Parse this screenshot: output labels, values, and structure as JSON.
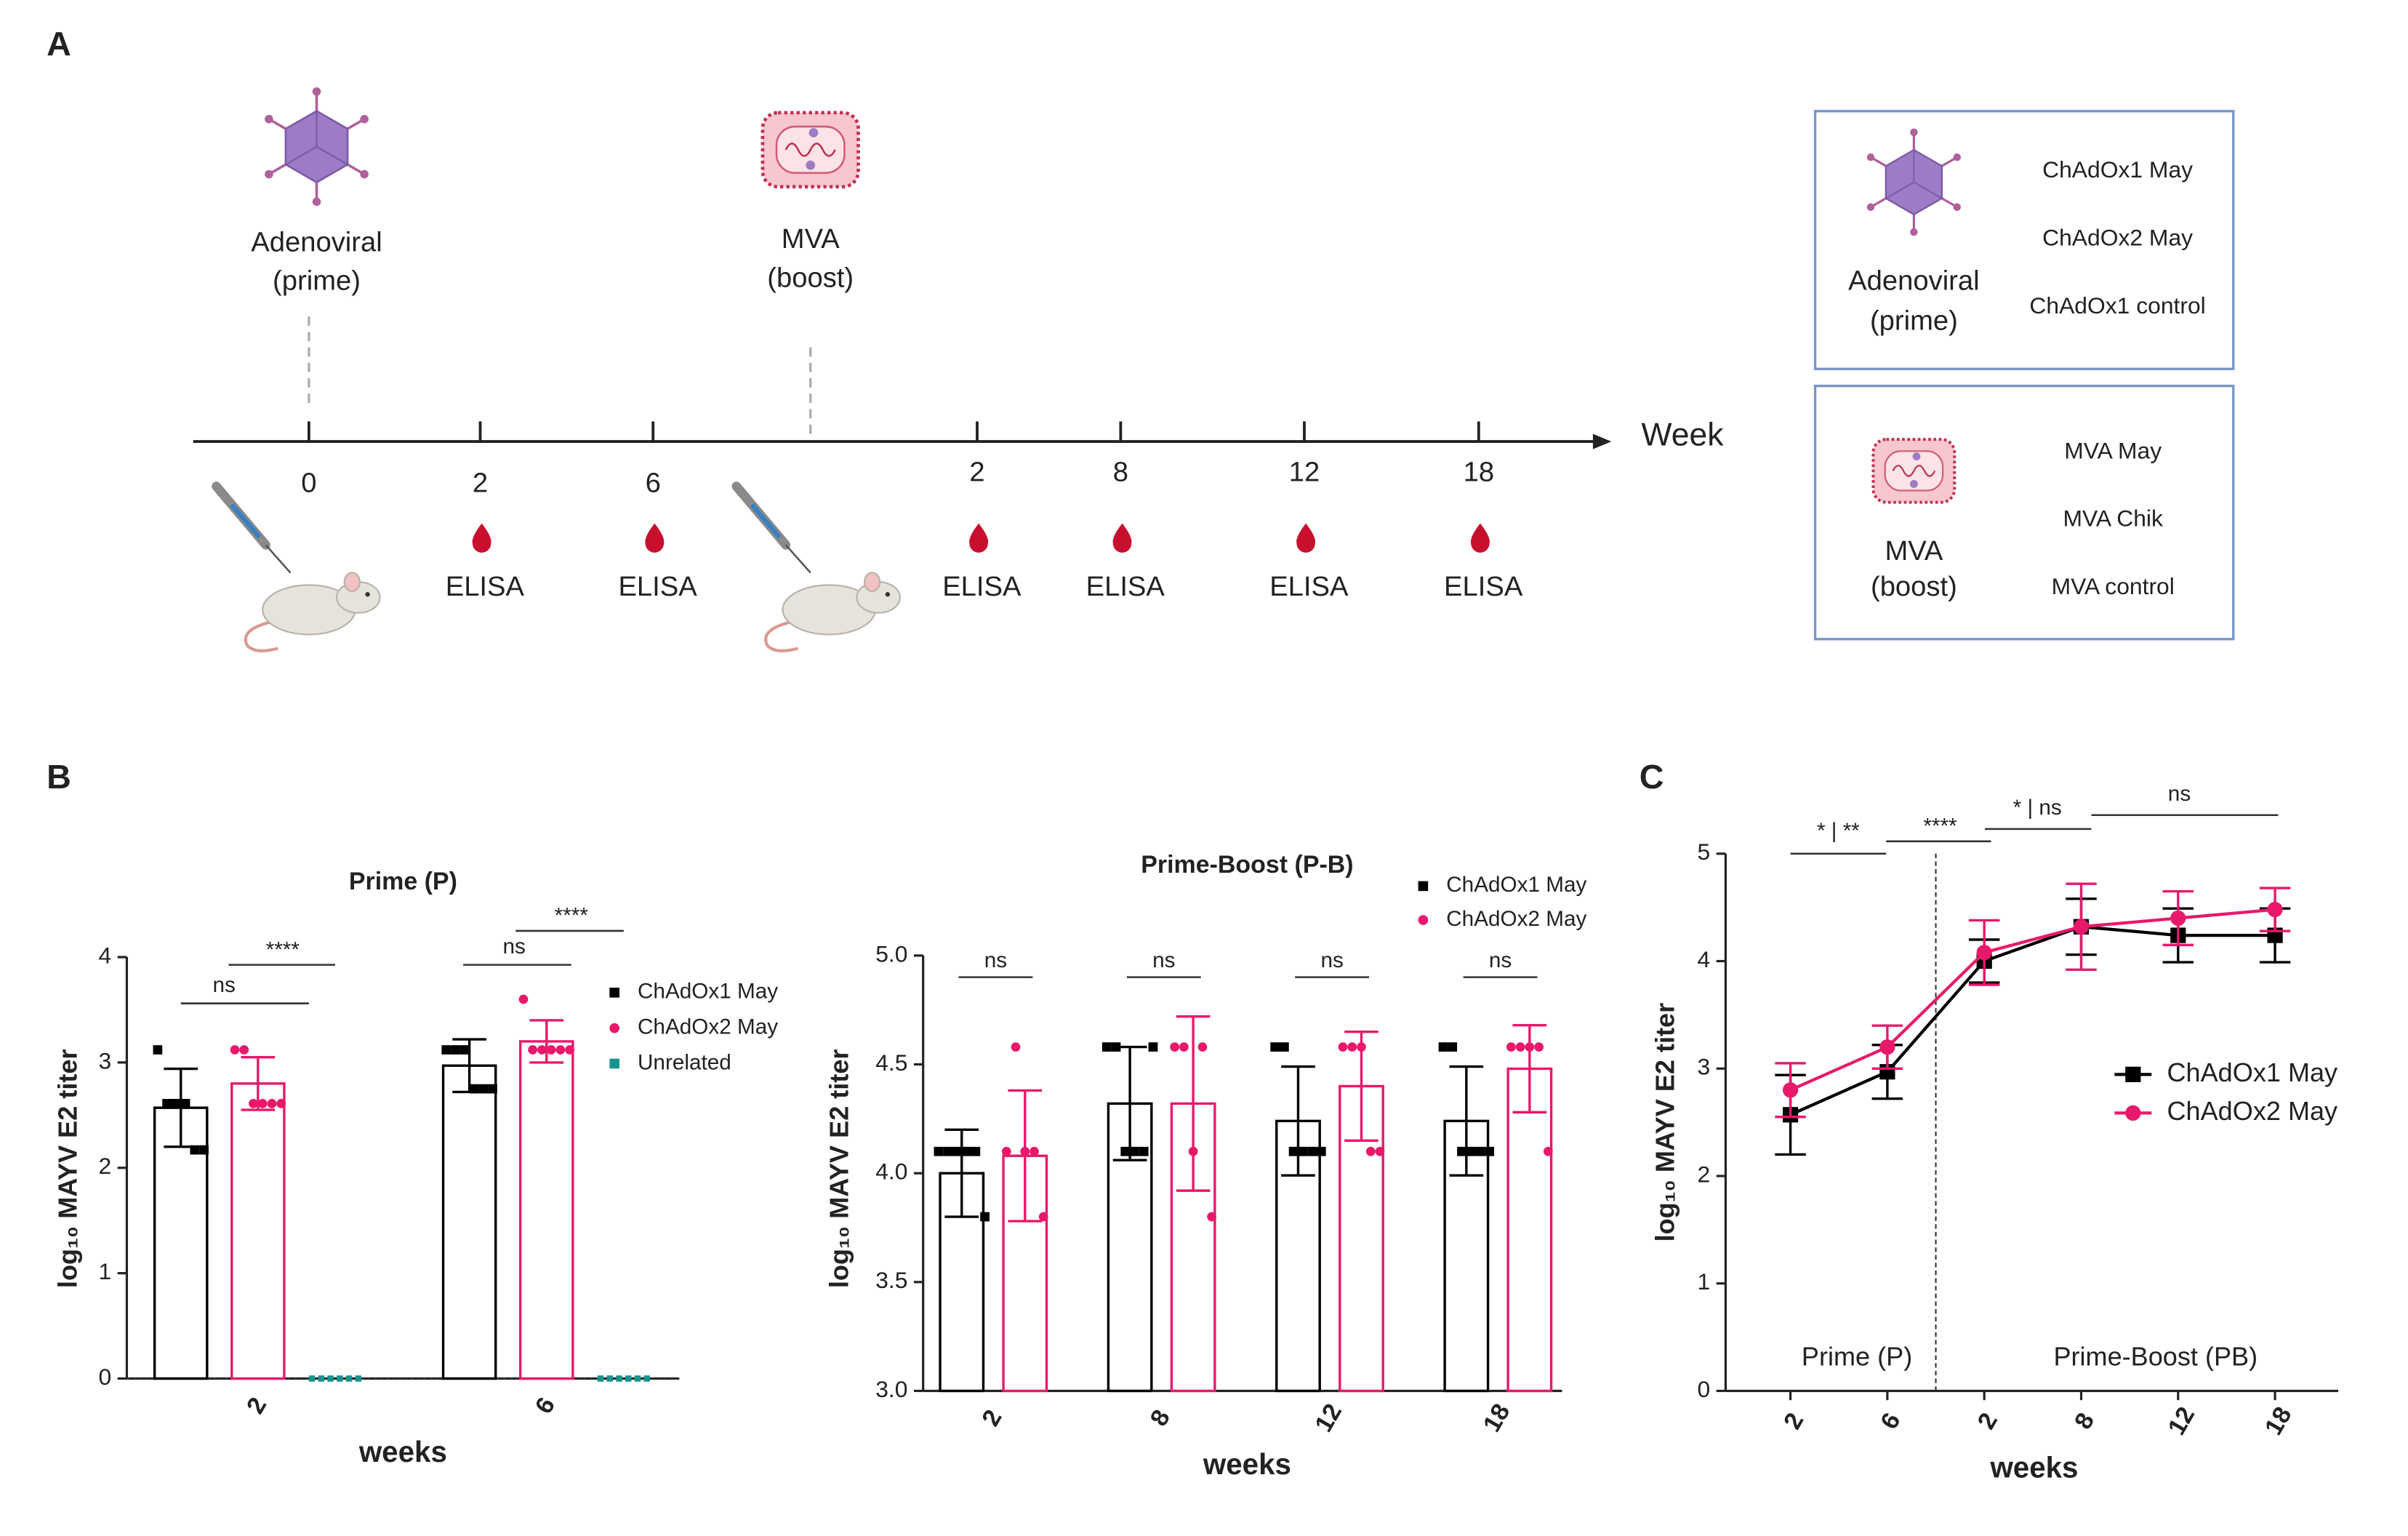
{
  "panels": [
    "A",
    "B",
    "C"
  ],
  "diagram": {
    "prime": {
      "label": [
        "Adenoviral",
        "(prime)"
      ]
    },
    "boost": {
      "label": [
        "MVA",
        "(boost)"
      ]
    },
    "timeline": {
      "ticks": [
        "0",
        "2",
        "6",
        "2",
        "8",
        "12",
        "18"
      ],
      "axis_label": "Week",
      "samples": [
        "ELISA",
        "ELISA",
        "ELISA",
        "ELISA",
        "ELISA",
        "ELISA"
      ]
    },
    "groups": [
      {
        "label": [
          "Adenoviral",
          "(prime)"
        ],
        "items": [
          "ChAdOx1 May",
          "ChAdOx2 May",
          "ChAdOx1 control"
        ]
      },
      {
        "label": [
          "MVA",
          "(boost)"
        ],
        "items": [
          "MVA May",
          "MVA Chik",
          "MVA control"
        ]
      }
    ]
  },
  "chart_data": [
    {
      "type": "bar",
      "title": "Prime (P)",
      "xlabel": "weeks",
      "ylabel": "log₁₀ MAYV E2 titer",
      "categories": [
        "2",
        "6"
      ],
      "ylim": [
        0,
        4
      ],
      "yticks": [
        0,
        1,
        2,
        3,
        4
      ],
      "series": [
        {
          "name": "ChAdOx1 May",
          "color": "#000000",
          "marker": "square",
          "values": [
            2.57,
            2.97
          ],
          "errors": [
            0.37,
            0.25
          ],
          "points": [
            [
              3.12,
              2.61,
              2.61,
              2.61,
              2.17,
              2.17
            ],
            [
              3.12,
              3.12,
              3.12,
              2.75,
              2.75,
              2.75
            ]
          ]
        },
        {
          "name": "ChAdOx2 May",
          "color": "#e8196a",
          "marker": "circle",
          "values": [
            2.8,
            3.2
          ],
          "errors": [
            0.25,
            0.2
          ],
          "points": [
            [
              3.12,
              3.12,
              2.61,
              2.61,
              2.61,
              2.61
            ],
            [
              3.6,
              3.12,
              3.12,
              3.12,
              3.12,
              3.12
            ]
          ]
        },
        {
          "name": "Unrelated",
          "color": "#14948c",
          "marker": "square",
          "values": [
            0,
            0
          ],
          "errors": [
            0,
            0
          ],
          "points": [
            [
              0,
              0,
              0,
              0,
              0,
              0
            ],
            [
              0,
              0,
              0,
              0,
              0,
              0
            ]
          ]
        }
      ],
      "annotations": [
        "ns",
        "****",
        "ns",
        "****"
      ]
    },
    {
      "type": "bar",
      "title": "Prime-Boost (P-B)",
      "xlabel": "weeks",
      "ylabel": "log₁₀ MAYV E2 titer",
      "categories": [
        "2",
        "8",
        "12",
        "18"
      ],
      "ylim": [
        3,
        5
      ],
      "yticks": [
        {
          "value": 3,
          "label": "3.0"
        },
        3.5,
        {
          "value": 4,
          "label": "4.0"
        },
        4.5,
        {
          "value": 5,
          "label": "5.0"
        }
      ],
      "series": [
        {
          "name": "ChAdOx1 May",
          "color": "#000000",
          "marker": "square",
          "values": [
            4.0,
            4.32,
            4.24,
            4.24
          ],
          "errors": [
            0.2,
            0.26,
            0.25,
            0.25
          ],
          "points": [
            [
              4.1,
              4.1,
              4.1,
              4.1,
              4.1,
              3.8
            ],
            [
              4.58,
              4.58,
              4.1,
              4.1,
              4.1,
              4.58
            ],
            [
              4.58,
              4.58,
              4.1,
              4.1,
              4.1,
              4.1
            ],
            [
              4.58,
              4.58,
              4.1,
              4.1,
              4.1,
              4.1
            ]
          ]
        },
        {
          "name": "ChAdOx2 May",
          "color": "#e8196a",
          "marker": "circle",
          "values": [
            4.08,
            4.32,
            4.4,
            4.48
          ],
          "errors": [
            0.3,
            0.4,
            0.25,
            0.2
          ],
          "points": [
            [
              4.1,
              4.58,
              4.1,
              4.1,
              3.8
            ],
            [
              4.58,
              4.58,
              4.1,
              4.58,
              3.8
            ],
            [
              4.58,
              4.58,
              4.58,
              4.1,
              4.1
            ],
            [
              4.58,
              4.58,
              4.58,
              4.58,
              4.1
            ]
          ]
        }
      ],
      "annotations": [
        "ns",
        "ns",
        "ns",
        "ns"
      ]
    },
    {
      "type": "line",
      "xlabel": "weeks",
      "ylabel": "log₁₀ MAYV E2 titer",
      "categories": [
        "2",
        "6",
        "2",
        "8",
        "12",
        "18"
      ],
      "ylim": [
        0,
        5
      ],
      "yticks": [
        0,
        1,
        2,
        3,
        4,
        5
      ],
      "series": [
        {
          "name": "ChAdOx1 May",
          "color": "#000000",
          "marker": "square",
          "values": [
            2.57,
            2.97,
            4.0,
            4.32,
            4.24,
            4.24
          ],
          "errors": [
            0.37,
            0.25,
            0.2,
            0.26,
            0.25,
            0.25
          ]
        },
        {
          "name": "ChAdOx2 May",
          "color": "#e8196a",
          "marker": "circle",
          "values": [
            2.8,
            3.2,
            4.08,
            4.32,
            4.4,
            4.48
          ],
          "errors": [
            0.25,
            0.2,
            0.3,
            0.4,
            0.25,
            0.2
          ]
        }
      ],
      "regions": [
        "Prime (P)",
        "Prime-Boost (PB)"
      ],
      "annotations": [
        "* | **",
        "****",
        "* | ns",
        "ns"
      ]
    }
  ]
}
